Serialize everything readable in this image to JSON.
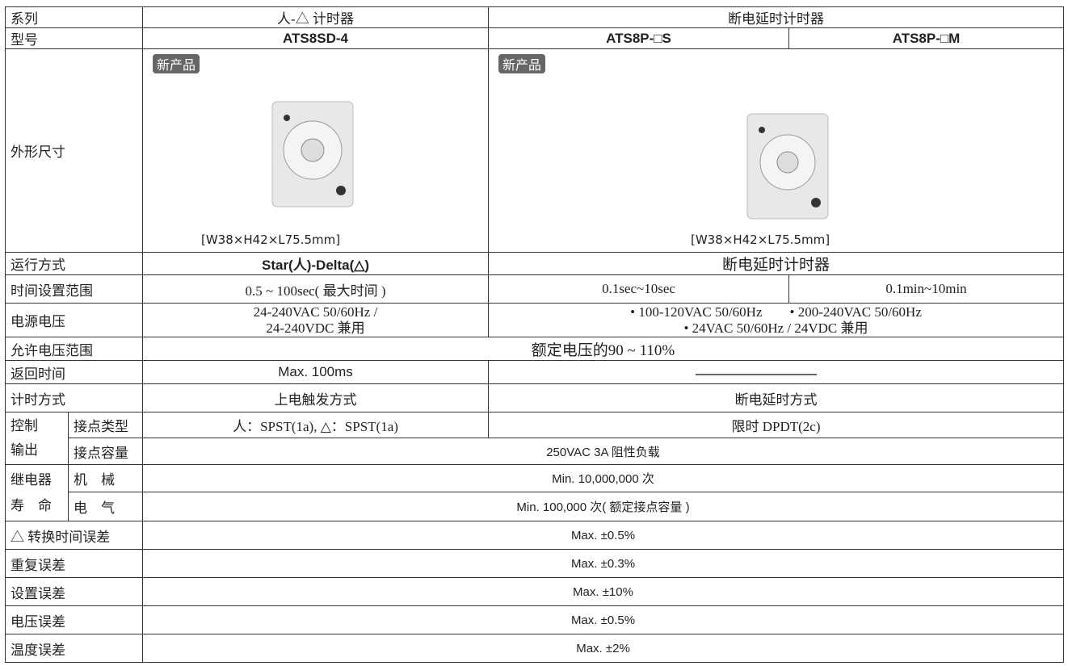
{
  "table": {
    "rows": [
      [
        "系列",
        "人-△ 计时器",
        "断电延时计时器"
      ],
      [
        "型号",
        "ATS8SD-4",
        "ATS8P-□S",
        "ATS8P-□M"
      ],
      [
        "外形尺寸",
        "新产品",
        "[W38×H42×L75.5mm]",
        "新产品",
        "[W38×H42×L75.5mm]"
      ],
      [
        "运行方式",
        "Star(人)-Delta(△)",
        "断电延时计时器"
      ],
      [
        "时间设置范围",
        "0.5 ~ 100sec( 最大时间 )",
        "0.1sec~10sec",
        "0.1min~10min"
      ],
      [
        "电源电压",
        "24-240VAC 50/60Hz /",
        "24-240VDC 兼用",
        "• 100-120VAC 50/60Hz",
        "• 200-240VAC 50/60Hz",
        "• 24VAC 50/60Hz / 24VDC 兼用"
      ],
      [
        "允许电压范围",
        "额定电压的90 ~ 110%"
      ],
      [
        "返回时间",
        "Max. 100ms"
      ],
      [
        "计时方式",
        "上电触发方式",
        "断电延时方式"
      ],
      [
        "控制",
        "接点类型",
        "人：SPST(1a), △：SPST(1a)",
        "限时 DPDT(2c)"
      ],
      [
        "输出",
        "接点容量",
        "250VAC 3A 阻性负载"
      ],
      [
        "继电器",
        "机　械",
        "Min. 10,000,000 次"
      ],
      [
        "寿　命",
        "电　气",
        "Min. 100,000 次( 额定接点容量 )"
      ],
      [
        "△ 转换时间误差",
        "Max. ±0.5%"
      ],
      [
        "重复误差",
        "Max. ±0.3%"
      ],
      [
        "设置误差",
        "Max. ±10%"
      ],
      [
        "电压误差",
        "Max. ±0.5%"
      ],
      [
        "温度误差",
        "Max. ±2%"
      ]
    ]
  }
}
